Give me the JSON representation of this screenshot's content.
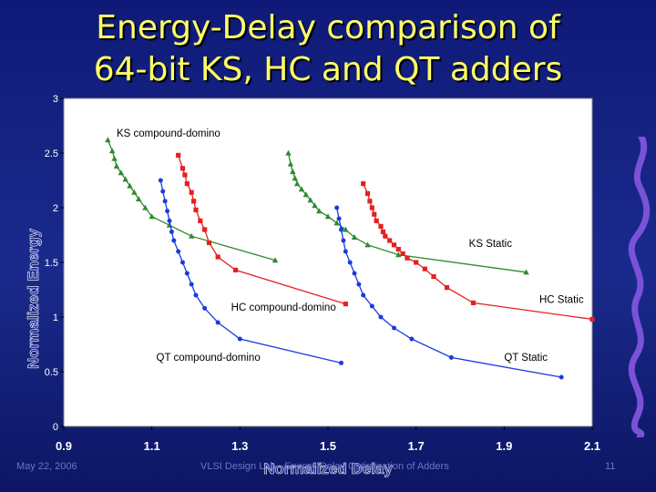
{
  "title": {
    "line1": "Energy-Delay comparison of",
    "line2": "64-bit KS, HC and QT adders"
  },
  "footer": {
    "left": "May 22, 2006",
    "center": "VLSI Design Lab - Energy-Delay Optimization of Adders",
    "right": "11"
  },
  "colors": {
    "background": "#1a2a8c",
    "title": "#ffff66",
    "plot_area": "#ffffff",
    "ks": "#2e8b2e",
    "hc": "#e52020",
    "qt": "#1a3ae0"
  },
  "chart_data": {
    "type": "line",
    "xlabel": "Normalized Delay",
    "ylabel": "Normalized Energy",
    "xlim": [
      0.9,
      2.1
    ],
    "ylim": [
      0,
      3
    ],
    "xticks": [
      "0.9",
      "1.1",
      "1.3",
      "1.5",
      "1.7",
      "1.9",
      "2.1"
    ],
    "yticks": [
      "0",
      "0.5",
      "1",
      "1.5",
      "2",
      "2.5",
      "3"
    ],
    "grid": false,
    "series": [
      {
        "name": "KS compound-domino",
        "color": "#2e8b2e",
        "marker": "triangle",
        "x": [
          1.0,
          1.01,
          1.015,
          1.02,
          1.03,
          1.04,
          1.05,
          1.06,
          1.07,
          1.085,
          1.1,
          1.14,
          1.19,
          1.38
        ],
        "y": [
          2.62,
          2.52,
          2.45,
          2.38,
          2.32,
          2.26,
          2.2,
          2.14,
          2.08,
          2.0,
          1.92,
          1.84,
          1.74,
          1.52
        ]
      },
      {
        "name": "HC compound-domino",
        "color": "#e52020",
        "marker": "square",
        "x": [
          1.16,
          1.17,
          1.175,
          1.18,
          1.19,
          1.195,
          1.2,
          1.21,
          1.22,
          1.23,
          1.25,
          1.29,
          1.54
        ],
        "y": [
          2.48,
          2.36,
          2.3,
          2.22,
          2.14,
          2.06,
          1.98,
          1.88,
          1.8,
          1.68,
          1.55,
          1.43,
          1.12
        ]
      },
      {
        "name": "QT compound-domino",
        "color": "#1a3ae0",
        "marker": "circle",
        "x": [
          1.12,
          1.125,
          1.13,
          1.135,
          1.14,
          1.145,
          1.15,
          1.16,
          1.17,
          1.18,
          1.19,
          1.2,
          1.22,
          1.25,
          1.3,
          1.53
        ],
        "y": [
          2.25,
          2.15,
          2.06,
          1.97,
          1.88,
          1.78,
          1.7,
          1.6,
          1.5,
          1.4,
          1.3,
          1.2,
          1.08,
          0.95,
          0.8,
          0.58
        ]
      },
      {
        "name": "KS Static",
        "color": "#2e8b2e",
        "marker": "triangle",
        "x": [
          1.41,
          1.415,
          1.42,
          1.425,
          1.43,
          1.44,
          1.45,
          1.46,
          1.47,
          1.48,
          1.5,
          1.52,
          1.54,
          1.56,
          1.59,
          1.66,
          1.95
        ],
        "y": [
          2.5,
          2.4,
          2.33,
          2.27,
          2.22,
          2.17,
          2.12,
          2.07,
          2.02,
          1.97,
          1.92,
          1.86,
          1.8,
          1.73,
          1.66,
          1.57,
          1.41
        ]
      },
      {
        "name": "HC Static",
        "color": "#e52020",
        "marker": "square",
        "x": [
          1.58,
          1.59,
          1.595,
          1.6,
          1.605,
          1.61,
          1.62,
          1.625,
          1.63,
          1.64,
          1.65,
          1.66,
          1.67,
          1.68,
          1.7,
          1.72,
          1.74,
          1.77,
          1.83,
          2.1
        ],
        "y": [
          2.22,
          2.13,
          2.06,
          2.0,
          1.94,
          1.88,
          1.83,
          1.78,
          1.74,
          1.7,
          1.66,
          1.62,
          1.58,
          1.54,
          1.5,
          1.44,
          1.37,
          1.27,
          1.13,
          0.98
        ]
      },
      {
        "name": "QT Static",
        "color": "#1a3ae0",
        "marker": "circle",
        "x": [
          1.52,
          1.525,
          1.53,
          1.535,
          1.54,
          1.55,
          1.56,
          1.57,
          1.58,
          1.6,
          1.62,
          1.65,
          1.69,
          1.78,
          2.03
        ],
        "y": [
          2.0,
          1.9,
          1.8,
          1.7,
          1.6,
          1.5,
          1.4,
          1.3,
          1.2,
          1.1,
          1.0,
          0.9,
          0.8,
          0.63,
          0.45
        ]
      }
    ],
    "annotations": [
      {
        "series": 0,
        "text": "KS compound-domino",
        "x": 1.02,
        "y": 2.65
      },
      {
        "series": 1,
        "text": "HC compound-domino",
        "x": 1.28,
        "y": 1.06
      },
      {
        "series": 2,
        "text": "QT compound-domino",
        "x": 1.11,
        "y": 0.6
      },
      {
        "series": 3,
        "text": "KS Static",
        "x": 1.82,
        "y": 1.64
      },
      {
        "series": 4,
        "text": "HC Static",
        "x": 1.98,
        "y": 1.13
      },
      {
        "series": 5,
        "text": "QT Static",
        "x": 1.9,
        "y": 0.6
      }
    ]
  }
}
